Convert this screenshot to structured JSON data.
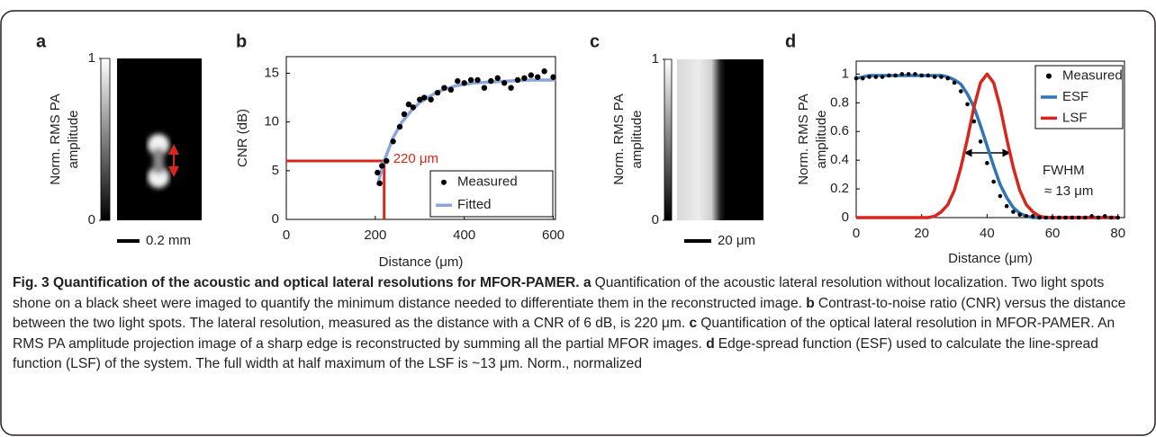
{
  "chart_data": [
    {
      "type": "image",
      "label": "a",
      "ylabel_lines": [
        "Norm. RMS PA",
        "amplitude"
      ],
      "clim": [
        0,
        1
      ],
      "cbar_ticks": [
        0,
        1
      ],
      "scalebar": "0.2 mm"
    },
    {
      "type": "scatter",
      "label": "b",
      "xlabel": "Distance (μm)",
      "ylabel": "CNR (dB)",
      "xlim": [
        0,
        605
      ],
      "ylim": [
        0,
        16.7
      ],
      "xticks": [
        0,
        200,
        400,
        600
      ],
      "yticks": [
        0,
        5,
        10,
        15
      ],
      "legend": "lower right",
      "series": [
        {
          "name": "Measured",
          "color": "#000000",
          "style": "markers",
          "x": [
            205,
            210,
            215,
            225,
            240,
            255,
            265,
            275,
            285,
            300,
            310,
            325,
            340,
            355,
            370,
            385,
            400,
            415,
            430,
            445,
            460,
            475,
            490,
            505,
            520,
            535,
            550,
            565,
            580,
            600
          ],
          "values": [
            4.8,
            3.7,
            5.5,
            6,
            8,
            9.5,
            10.8,
            11.8,
            11.5,
            12.3,
            12.5,
            12.3,
            13,
            13.5,
            13.3,
            14.2,
            14,
            14.3,
            14.3,
            13.5,
            14.2,
            14.5,
            14,
            13.5,
            14.3,
            14.5,
            14.8,
            14.6,
            15.2,
            14.6
          ]
        },
        {
          "name": "Fitted",
          "color": "#8aa6db",
          "style": "line",
          "x": [
            205,
            220,
            240,
            260,
            280,
            300,
            340,
            380,
            420,
            460,
            500,
            550,
            605
          ],
          "values": [
            3.5,
            6,
            8.4,
            10,
            11.1,
            12,
            13.1,
            13.7,
            14,
            14.1,
            14.2,
            14.3,
            14.3
          ]
        }
      ],
      "threshold": {
        "x": 220,
        "y": 6,
        "label": "220 μm",
        "color": "#d7261e"
      }
    },
    {
      "type": "image",
      "label": "c",
      "ylabel_lines": [
        "Norm. RMS PA",
        "amplitude"
      ],
      "clim": [
        0,
        1
      ],
      "cbar_ticks": [
        0,
        1
      ],
      "scalebar": "20 μm"
    },
    {
      "type": "line",
      "label": "d",
      "xlabel": "Distance (μm)",
      "ylabel_lines": [
        "Norm. RMS PA",
        "amplitude"
      ],
      "xlim": [
        0,
        82
      ],
      "ylim": [
        0,
        1.09
      ],
      "xticks": [
        0,
        20,
        40,
        60,
        80
      ],
      "yticks": [
        0,
        0.2,
        0.4,
        0.6,
        0.8,
        1
      ],
      "legend": "upper right",
      "x": [
        0,
        2,
        4,
        6,
        8,
        10,
        12,
        14,
        16,
        18,
        20,
        22,
        24,
        26,
        28,
        30,
        32,
        34,
        36,
        38,
        40,
        42,
        44,
        46,
        48,
        50,
        52,
        54,
        56,
        58,
        60,
        62,
        64,
        66,
        68,
        70,
        72,
        74,
        76,
        78,
        80
      ],
      "series": [
        {
          "name": "Measured",
          "color": "#000000",
          "style": "markers",
          "values": [
            0.97,
            0.97,
            0.98,
            0.98,
            0.98,
            0.99,
            0.99,
            1,
            1,
            1,
            0.99,
            0.99,
            0.98,
            0.98,
            0.97,
            0.94,
            0.88,
            0.79,
            0.67,
            0.53,
            0.38,
            0.25,
            0.15,
            0.08,
            0.04,
            0.02,
            0.01,
            0.01,
            0,
            0,
            0,
            0,
            0,
            0,
            0,
            0,
            0.01,
            0,
            0.01,
            0,
            0
          ]
        },
        {
          "name": "ESF",
          "color": "#2e75b6",
          "style": "line",
          "values": [
            0.97,
            0.98,
            0.99,
            0.99,
            0.99,
            0.99,
            0.99,
            0.99,
            0.99,
            0.99,
            0.99,
            0.99,
            0.99,
            0.99,
            0.98,
            0.96,
            0.93,
            0.86,
            0.77,
            0.64,
            0.5,
            0.36,
            0.23,
            0.14,
            0.07,
            0.03,
            0.01,
            0,
            0,
            0,
            0,
            0,
            0,
            0,
            0,
            0,
            0,
            0,
            0,
            0,
            0
          ]
        },
        {
          "name": "LSF",
          "color": "#d7261e",
          "style": "line",
          "values": [
            0,
            0,
            0,
            0,
            0,
            0,
            0,
            0,
            0,
            0,
            0,
            0,
            0.01,
            0.04,
            0.09,
            0.19,
            0.35,
            0.55,
            0.77,
            0.94,
            1,
            0.94,
            0.77,
            0.55,
            0.35,
            0.19,
            0.09,
            0.04,
            0.01,
            0,
            0,
            0,
            0,
            0,
            0,
            0,
            0,
            0,
            0,
            0,
            0
          ]
        }
      ],
      "annotation": [
        "FWHM",
        "≈ 13 μm"
      ]
    }
  ],
  "caption": {
    "title": "Fig. 3 Quantification of the acoustic and optical lateral resolutions for MFOR-PAMER.",
    "parts": [
      {
        "label": "a",
        "text": "Quantification of the acoustic lateral resolution without localization. Two light spots shone on a black sheet were imaged to quantify the minimum distance needed to differentiate them in the reconstructed image."
      },
      {
        "label": "b",
        "text": "Contrast-to-noise ratio (CNR) versus the distance between the two light spots. The lateral resolution, measured as the distance with a CNR of 6 dB, is 220 μm."
      },
      {
        "label": "c",
        "text": "Quantification of the optical lateral resolution in MFOR-PAMER. An RMS PA amplitude projection image of a sharp edge is reconstructed by summing all the partial MFOR images."
      },
      {
        "label": "d",
        "text": "Edge-spread function (ESF) used to calculate the line-spread function (LSF) of the system. The full width at half maximum of the LSF is ~13 μm. Norm., normalized"
      }
    ]
  }
}
